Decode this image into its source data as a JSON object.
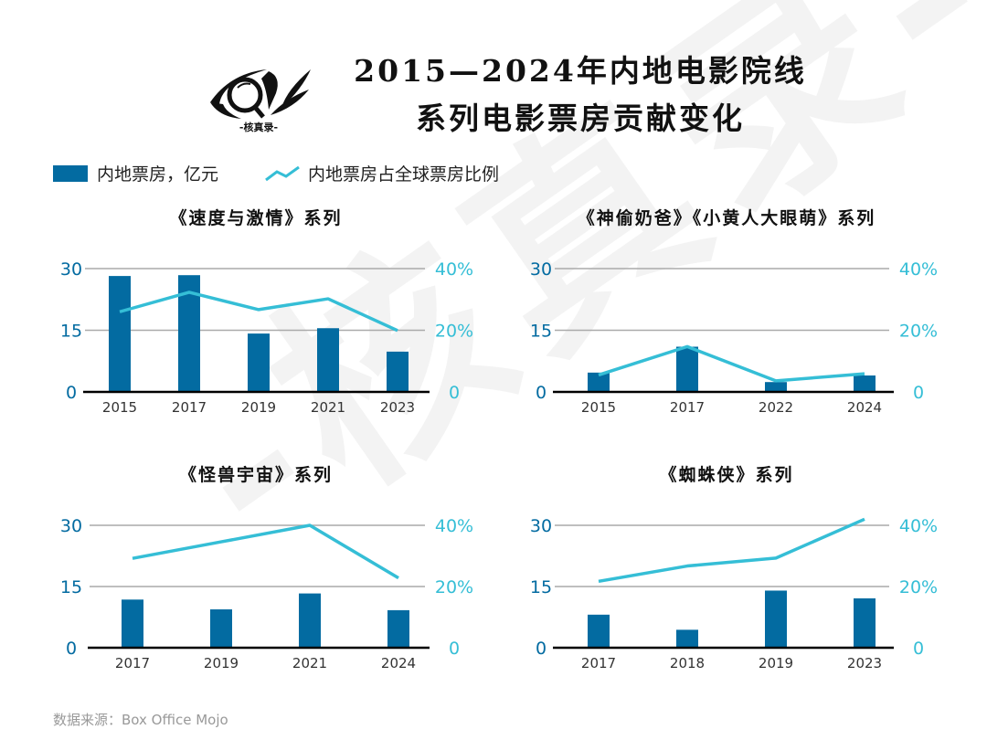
{
  "title_line1": "2015—2024年内地电影院线",
  "title_line2": "系列电影票房贡献变化",
  "logo": {
    "icon": "eye-magnifier-feather-logo",
    "text": "-核真录-"
  },
  "watermark": "-核真录-",
  "legend": [
    {
      "label": "内地票房，亿元",
      "type": "bar",
      "color": "#036ba1"
    },
    {
      "label": "内地票房占全球票房比例",
      "type": "line",
      "color": "#35bed6"
    }
  ],
  "colors": {
    "bar": "#036ba1",
    "line": "#35bed6",
    "left_axis": "#036ba1",
    "right_axis": "#35bed6",
    "grid": "#aaaaaa",
    "baseline": "#000000"
  },
  "source": "数据来源：Box Office Mojo",
  "chart_data": [
    {
      "type": "bar+line",
      "title": "《速度与激情》系列",
      "categories": [
        "2015",
        "2017",
        "2019",
        "2021",
        "2023"
      ],
      "series": [
        {
          "name": "内地票房，亿元",
          "type": "bar",
          "axis": "left",
          "values": [
            28.2,
            28.4,
            14.2,
            15.5,
            9.8
          ]
        },
        {
          "name": "内地票房占全球票房比例",
          "type": "line",
          "axis": "right",
          "values": [
            26.0,
            32.3,
            26.7,
            30.2,
            19.9
          ]
        }
      ],
      "ylim": [
        0,
        30
      ],
      "yticks": [
        "0",
        "15",
        "30"
      ],
      "y2lim": [
        0,
        40
      ],
      "y2ticks": [
        "0",
        "20%",
        "40%"
      ],
      "grid": true
    },
    {
      "type": "bar+line",
      "title": "《神偷奶爸》《小黄人大眼萌》系列",
      "categories": [
        "2015",
        "2017",
        "2022",
        "2024"
      ],
      "series": [
        {
          "name": "内地票房，亿元",
          "type": "bar",
          "axis": "left",
          "values": [
            4.7,
            11.0,
            2.4,
            4.0
          ]
        },
        {
          "name": "内地票房占全球票房比例",
          "type": "line",
          "axis": "right",
          "values": [
            5.5,
            14.7,
            3.6,
            5.9
          ]
        }
      ],
      "ylim": [
        0,
        30
      ],
      "yticks": [
        "0",
        "15",
        "30"
      ],
      "y2lim": [
        0,
        40
      ],
      "y2ticks": [
        "0",
        "20%",
        "40%"
      ],
      "grid": true
    },
    {
      "type": "bar+line",
      "title": "《怪兽宇宙》系列",
      "categories": [
        "2017",
        "2019",
        "2021",
        "2024"
      ],
      "series": [
        {
          "name": "内地票房，亿元",
          "type": "bar",
          "axis": "left",
          "values": [
            11.8,
            9.4,
            13.3,
            9.2
          ]
        },
        {
          "name": "内地票房占全球票房比例",
          "type": "line",
          "axis": "right",
          "values": [
            29.2,
            34.6,
            40.0,
            22.8
          ]
        }
      ],
      "ylim": [
        0,
        30
      ],
      "yticks": [
        "0",
        "15",
        "30"
      ],
      "y2lim": [
        0,
        40
      ],
      "y2ticks": [
        "0",
        "20%",
        "40%"
      ],
      "grid": true
    },
    {
      "type": "bar+line",
      "title": "《蜘蛛侠》系列",
      "categories": [
        "2017",
        "2018",
        "2019",
        "2023"
      ],
      "series": [
        {
          "name": "内地票房，亿元",
          "type": "bar",
          "axis": "left",
          "values": [
            8.1,
            4.4,
            14.0,
            12.1
          ]
        },
        {
          "name": "内地票房占全球票房比例",
          "type": "line",
          "axis": "right",
          "values": [
            21.7,
            26.7,
            29.3,
            42.0
          ]
        }
      ],
      "ylim": [
        0,
        30
      ],
      "yticks": [
        "0",
        "15",
        "30"
      ],
      "y2lim": [
        0,
        40
      ],
      "y2ticks": [
        "0",
        "20%",
        "40%"
      ],
      "grid": true
    }
  ]
}
